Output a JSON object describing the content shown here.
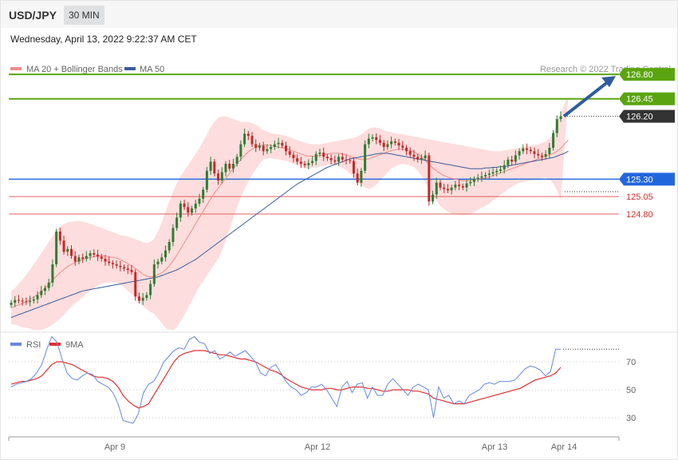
{
  "header": {
    "symbol": "USD/JPY",
    "timeframe": "30 MIN"
  },
  "timestamp": "Wednesday, April 13, 2022 9:22:37 AM CET",
  "credit": "Research © 2022 Trading Central",
  "colors": {
    "ma20": "#f28b8b",
    "ma50": "#3a5c9c",
    "band": "#fdd9d9",
    "up": "#2f7d32",
    "down": "#c62828",
    "green_level": "#5aa50f",
    "blue_level": "#2266dd",
    "red_level": "#e06060",
    "rsi": "#6688dd",
    "rsi_ma": "#e03030"
  },
  "chart_data": [
    {
      "type": "candlestick",
      "legend": [
        {
          "name": "MA 20 + Bollinger Bands",
          "color": "#f28b8b"
        },
        {
          "name": "MA 50",
          "color": "#3a5c9c"
        }
      ],
      "x_ticks": [
        "Apr 9",
        "Apr 12",
        "Apr 13",
        "Apr 14"
      ],
      "ylim": [
        123.2,
        126.95
      ],
      "levels": [
        {
          "value": 126.8,
          "label": "126.80",
          "style": "resistance"
        },
        {
          "value": 126.45,
          "label": "126.45",
          "style": "resistance"
        },
        {
          "value": 126.2,
          "label": "126.20",
          "style": "last"
        },
        {
          "value": 125.3,
          "label": "125.30",
          "style": "pivot"
        },
        {
          "value": 125.05,
          "label": "125.05",
          "style": "support"
        },
        {
          "value": 124.8,
          "label": "124.80",
          "style": "support"
        }
      ],
      "closes": [
        123.53,
        123.57,
        123.56,
        123.55,
        123.54,
        123.56,
        123.58,
        123.64,
        123.7,
        123.74,
        123.82,
        124.08,
        124.55,
        124.42,
        124.26,
        124.3,
        124.2,
        124.12,
        124.18,
        124.16,
        124.2,
        124.24,
        124.22,
        124.19,
        124.16,
        124.12,
        124.1,
        124.08,
        124.06,
        124.04,
        124.02,
        124.0,
        123.97,
        123.62,
        123.56,
        123.6,
        123.64,
        123.8,
        124.08,
        124.12,
        124.18,
        124.28,
        124.4,
        124.6,
        124.75,
        124.95,
        124.9,
        124.82,
        124.88,
        124.95,
        125.02,
        125.15,
        125.42,
        125.55,
        125.38,
        125.28,
        125.4,
        125.52,
        125.45,
        125.52,
        125.62,
        125.8,
        125.95,
        125.92,
        125.8,
        125.75,
        125.78,
        125.7,
        125.73,
        125.76,
        125.8,
        125.82,
        125.78,
        125.7,
        125.65,
        125.6,
        125.55,
        125.52,
        125.5,
        125.53,
        125.56,
        125.66,
        125.68,
        125.62,
        125.6,
        125.57,
        125.55,
        125.62,
        125.58,
        125.57,
        125.56,
        125.38,
        125.25,
        125.42,
        125.8,
        125.88,
        125.9,
        125.86,
        125.82,
        125.76,
        125.8,
        125.84,
        125.82,
        125.78,
        125.75,
        125.7,
        125.65,
        125.62,
        125.58,
        125.6,
        125.64,
        124.98,
        125.08,
        125.25,
        125.18,
        125.16,
        125.14,
        125.18,
        125.22,
        125.2,
        125.18,
        125.24,
        125.26,
        125.3,
        125.32,
        125.34,
        125.36,
        125.38,
        125.4,
        125.42,
        125.44,
        125.5,
        125.58,
        125.55,
        125.64,
        125.7,
        125.74,
        125.72,
        125.7,
        125.66,
        125.64,
        125.62,
        125.66,
        125.75,
        125.96,
        126.16,
        126.2
      ],
      "ma50": [
        123.32,
        123.34,
        123.36,
        123.38,
        123.4,
        123.42,
        123.44,
        123.46,
        123.48,
        123.5,
        123.52,
        123.54,
        123.56,
        123.58,
        123.6,
        123.62,
        123.64,
        123.66,
        123.68,
        123.7,
        123.71,
        123.72,
        123.73,
        123.74,
        123.75,
        123.76,
        123.77,
        123.78,
        123.79,
        123.8,
        123.81,
        123.82,
        123.83,
        123.84,
        123.85,
        123.86,
        123.87,
        123.88,
        123.89,
        123.9,
        123.92,
        123.94,
        123.96,
        123.98,
        124.0,
        124.03,
        124.06,
        124.09,
        124.12,
        124.15,
        124.19,
        124.23,
        124.27,
        124.31,
        124.35,
        124.39,
        124.43,
        124.47,
        124.51,
        124.55,
        124.59,
        124.63,
        124.67,
        124.71,
        124.75,
        124.79,
        124.83,
        124.87,
        124.91,
        124.95,
        124.99,
        125.03,
        125.07,
        125.11,
        125.15,
        125.19,
        125.23,
        125.26,
        125.29,
        125.32,
        125.35,
        125.38,
        125.41,
        125.44,
        125.47,
        125.49,
        125.51,
        125.53,
        125.55,
        125.57,
        125.59,
        125.6,
        125.61,
        125.62,
        125.63,
        125.64,
        125.65,
        125.66,
        125.67,
        125.67,
        125.67,
        125.66,
        125.65,
        125.64,
        125.63,
        125.62,
        125.61,
        125.6,
        125.59,
        125.58,
        125.57,
        125.56,
        125.55,
        125.54,
        125.53,
        125.52,
        125.51,
        125.5,
        125.49,
        125.48,
        125.47,
        125.46,
        125.45,
        125.45,
        125.45,
        125.45,
        125.46,
        125.46,
        125.47,
        125.47,
        125.48,
        125.48,
        125.49,
        125.5,
        125.51,
        125.52,
        125.53,
        125.54,
        125.55,
        125.56,
        125.57,
        125.58,
        125.59,
        125.6,
        125.61,
        125.63,
        125.65,
        125.67,
        125.7
      ],
      "ma20": [
        123.46,
        123.48,
        123.5,
        123.52,
        123.55,
        123.58,
        123.61,
        123.65,
        123.69,
        123.74,
        123.79,
        123.85,
        123.91,
        123.96,
        124.01,
        124.05,
        124.08,
        124.11,
        124.13,
        124.15,
        124.17,
        124.18,
        124.19,
        124.2,
        124.2,
        124.2,
        124.19,
        124.18,
        124.17,
        124.15,
        124.12,
        124.09,
        124.06,
        124.02,
        123.98,
        123.94,
        123.91,
        123.9,
        123.91,
        123.93,
        123.96,
        124.0,
        124.06,
        124.13,
        124.21,
        124.3,
        124.39,
        124.48,
        124.57,
        124.66,
        124.75,
        124.84,
        124.93,
        125.02,
        125.1,
        125.17,
        125.24,
        125.31,
        125.38,
        125.45,
        125.52,
        125.58,
        125.64,
        125.69,
        125.73,
        125.76,
        125.78,
        125.79,
        125.79,
        125.78,
        125.77,
        125.76,
        125.75,
        125.74,
        125.72,
        125.7,
        125.68,
        125.66,
        125.64,
        125.63,
        125.63,
        125.63,
        125.64,
        125.65,
        125.66,
        125.67,
        125.67,
        125.67,
        125.66,
        125.65,
        125.63,
        125.61,
        125.59,
        125.58,
        125.58,
        125.59,
        125.61,
        125.63,
        125.65,
        125.67,
        125.69,
        125.71,
        125.72,
        125.73,
        125.73,
        125.72,
        125.71,
        125.69,
        125.66,
        125.62,
        125.57,
        125.51,
        125.46,
        125.42,
        125.38,
        125.35,
        125.33,
        125.31,
        125.3,
        125.29,
        125.28,
        125.28,
        125.28,
        125.29,
        125.3,
        125.31,
        125.32,
        125.33,
        125.35,
        125.37,
        125.39,
        125.41,
        125.43,
        125.45,
        125.47,
        125.49,
        125.51,
        125.53,
        125.55,
        125.57,
        125.59,
        125.61,
        125.63,
        125.65,
        125.67,
        125.7,
        125.74,
        125.8,
        125.86
      ],
      "bb_upper": [
        123.7,
        123.74,
        123.8,
        123.86,
        123.93,
        124.0,
        124.08,
        124.16,
        124.24,
        124.32,
        124.4,
        124.48,
        124.56,
        124.62,
        124.66,
        124.68,
        124.69,
        124.7,
        124.7,
        124.69,
        124.68,
        124.66,
        124.64,
        124.62,
        124.6,
        124.58,
        124.56,
        124.54,
        124.52,
        124.5,
        124.49,
        124.48,
        124.46,
        124.44,
        124.42,
        124.4,
        124.38,
        124.4,
        124.45,
        124.55,
        124.68,
        124.83,
        124.98,
        125.12,
        125.24,
        125.34,
        125.42,
        125.5,
        125.58,
        125.66,
        125.74,
        125.84,
        125.94,
        126.04,
        126.12,
        126.18,
        126.2,
        126.2,
        126.18,
        126.16,
        126.14,
        126.12,
        126.12,
        126.12,
        126.1,
        126.08,
        126.04,
        126.0,
        125.98,
        125.96,
        125.95,
        125.94,
        125.93,
        125.92,
        125.9,
        125.88,
        125.86,
        125.84,
        125.82,
        125.81,
        125.8,
        125.8,
        125.8,
        125.81,
        125.82,
        125.83,
        125.84,
        125.85,
        125.86,
        125.87,
        125.88,
        125.89,
        125.91,
        125.94,
        125.98,
        126.02,
        126.04,
        126.04,
        126.02,
        126.0,
        125.98,
        125.97,
        125.96,
        125.95,
        125.94,
        125.93,
        125.92,
        125.91,
        125.9,
        125.89,
        125.88,
        125.87,
        125.86,
        125.85,
        125.84,
        125.83,
        125.82,
        125.81,
        125.8,
        125.79,
        125.78,
        125.77,
        125.76,
        125.75,
        125.74,
        125.73,
        125.72,
        125.71,
        125.7,
        125.7,
        125.7,
        125.71,
        125.72,
        125.73,
        125.74,
        125.75,
        125.76,
        125.77,
        125.78,
        125.79,
        125.8,
        125.82,
        125.84,
        125.88,
        125.96,
        126.1,
        126.24,
        126.38,
        126.48
      ],
      "bb_lower": [
        123.22,
        123.22,
        123.2,
        123.18,
        123.17,
        123.16,
        123.14,
        123.14,
        123.14,
        123.16,
        123.18,
        123.22,
        123.26,
        123.3,
        123.36,
        123.42,
        123.47,
        123.52,
        123.56,
        123.61,
        123.66,
        123.7,
        123.74,
        123.78,
        123.8,
        123.82,
        123.82,
        123.82,
        123.82,
        123.8,
        123.75,
        123.7,
        123.66,
        123.6,
        123.54,
        123.48,
        123.44,
        123.4,
        123.37,
        123.31,
        123.24,
        123.17,
        123.14,
        123.14,
        123.18,
        123.26,
        123.36,
        123.46,
        123.56,
        123.66,
        123.76,
        123.84,
        123.92,
        124.0,
        124.08,
        124.16,
        124.28,
        124.42,
        124.58,
        124.74,
        124.9,
        125.04,
        125.16,
        125.26,
        125.36,
        125.44,
        125.52,
        125.58,
        125.6,
        125.6,
        125.59,
        125.58,
        125.57,
        125.56,
        125.54,
        125.52,
        125.5,
        125.48,
        125.46,
        125.45,
        125.46,
        125.46,
        125.48,
        125.49,
        125.5,
        125.51,
        125.5,
        125.49,
        125.46,
        125.43,
        125.38,
        125.33,
        125.27,
        125.22,
        125.18,
        125.16,
        125.18,
        125.22,
        125.28,
        125.34,
        125.4,
        125.45,
        125.48,
        125.51,
        125.52,
        125.51,
        125.5,
        125.47,
        125.42,
        125.35,
        125.26,
        125.15,
        125.06,
        124.99,
        124.92,
        124.87,
        124.84,
        124.81,
        124.8,
        124.79,
        124.78,
        124.79,
        124.8,
        124.83,
        124.86,
        124.89,
        124.92,
        124.95,
        125.0,
        125.03,
        125.08,
        125.11,
        125.16,
        125.19,
        125.22,
        125.25,
        125.26,
        125.27,
        125.28,
        125.29,
        125.3,
        125.31,
        125.32,
        125.3,
        125.24,
        125.14,
        125.0,
        124.9
      ]
    },
    {
      "type": "line",
      "legend": [
        {
          "name": "RSI",
          "color": "#6688dd"
        },
        {
          "name": "9MA",
          "color": "#e03030"
        }
      ],
      "y_ticks": [
        30,
        50,
        70
      ],
      "ylim": [
        17.5,
        90
      ],
      "last_value": 79,
      "rsi": [
        52,
        54,
        55,
        56,
        58,
        62,
        68,
        79,
        88,
        84,
        72,
        62,
        58,
        57,
        60,
        62,
        61,
        56,
        54,
        52,
        48,
        40,
        28,
        27,
        26,
        33,
        48,
        54,
        56,
        62,
        70,
        74,
        78,
        80,
        79,
        86,
        88,
        84,
        83,
        76,
        78,
        72,
        74,
        77,
        74,
        76,
        78,
        74,
        70,
        62,
        60,
        66,
        68,
        62,
        56,
        52,
        50,
        46,
        48,
        52,
        52,
        54,
        50,
        44,
        38,
        52,
        56,
        48,
        54,
        55,
        44,
        52,
        46,
        46,
        54,
        58,
        54,
        50,
        46,
        52,
        54,
        52,
        50,
        30,
        52,
        44,
        46,
        40,
        42,
        40,
        46,
        48,
        50,
        54,
        55,
        54,
        56,
        56,
        56,
        57,
        61,
        65,
        67,
        66,
        64,
        60,
        63,
        79,
        79
      ],
      "rsi_ma": [
        54,
        55,
        56,
        56,
        57,
        58,
        60,
        64,
        68,
        70,
        70,
        69,
        68,
        66,
        64,
        62,
        60,
        59,
        59,
        58,
        56,
        52,
        46,
        42,
        39,
        37,
        38,
        40,
        46,
        52,
        58,
        64,
        70,
        74,
        76,
        77,
        78,
        78,
        78,
        77,
        76,
        75,
        75,
        74,
        73,
        72,
        72,
        71,
        70,
        68,
        66,
        64,
        63,
        61,
        58,
        56,
        54,
        52,
        51,
        50,
        50,
        50,
        51,
        51,
        50,
        50,
        51,
        52,
        52,
        52,
        51,
        51,
        50,
        49,
        49,
        50,
        50,
        50,
        50,
        49,
        49,
        48,
        47,
        44,
        43,
        42,
        41,
        40,
        40,
        40,
        41,
        42,
        43,
        44,
        45,
        46,
        47,
        48,
        49,
        50,
        51,
        53,
        55,
        57,
        58,
        59,
        60,
        62,
        66
      ]
    }
  ]
}
